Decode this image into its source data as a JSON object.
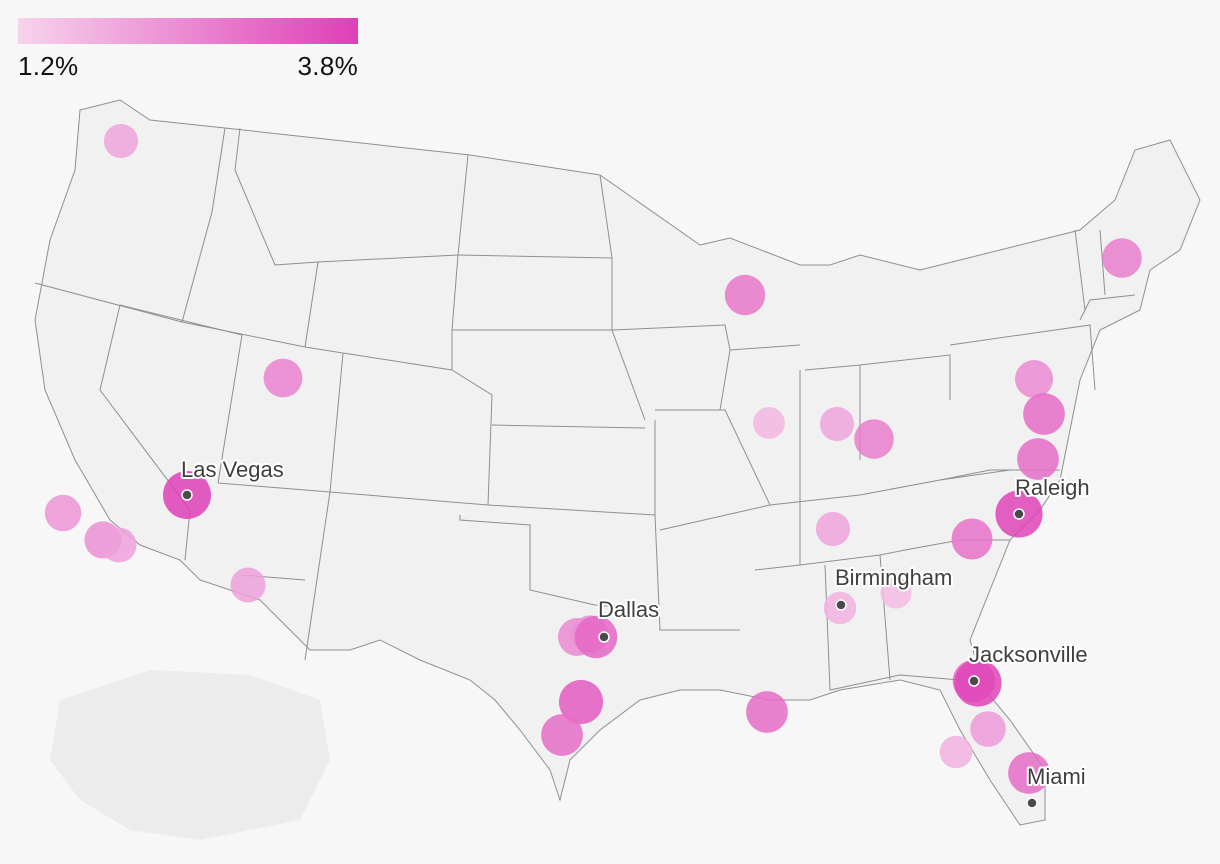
{
  "legend": {
    "min_label": "1.2%",
    "max_label": "3.8%",
    "min_value": 1.2,
    "max_value": 3.8,
    "color_low": "#f7d3ec",
    "color_high": "#de3fb7"
  },
  "cities": [
    {
      "name": "Las Vegas",
      "label": "Las Vegas"
    },
    {
      "name": "Dallas",
      "label": "Dallas"
    },
    {
      "name": "Birmingham",
      "label": "Birmingham"
    },
    {
      "name": "Raleigh",
      "label": "Raleigh"
    },
    {
      "name": "Jacksonville",
      "label": "Jacksonville"
    },
    {
      "name": "Miami",
      "label": "Miami"
    }
  ],
  "bubble_values": [
    2.0,
    2.3,
    2.4,
    2.1,
    2.6,
    2.1,
    3.8,
    2.5,
    2.4,
    3.1,
    3.3,
    3.0,
    3.0,
    2.8,
    1.7,
    2.0,
    2.7,
    2.0,
    1.8,
    1.6,
    2.9,
    3.0,
    3.7,
    2.5,
    3.0,
    2.7,
    3.1,
    3.7,
    2.2,
    1.8,
    3.0
  ]
}
